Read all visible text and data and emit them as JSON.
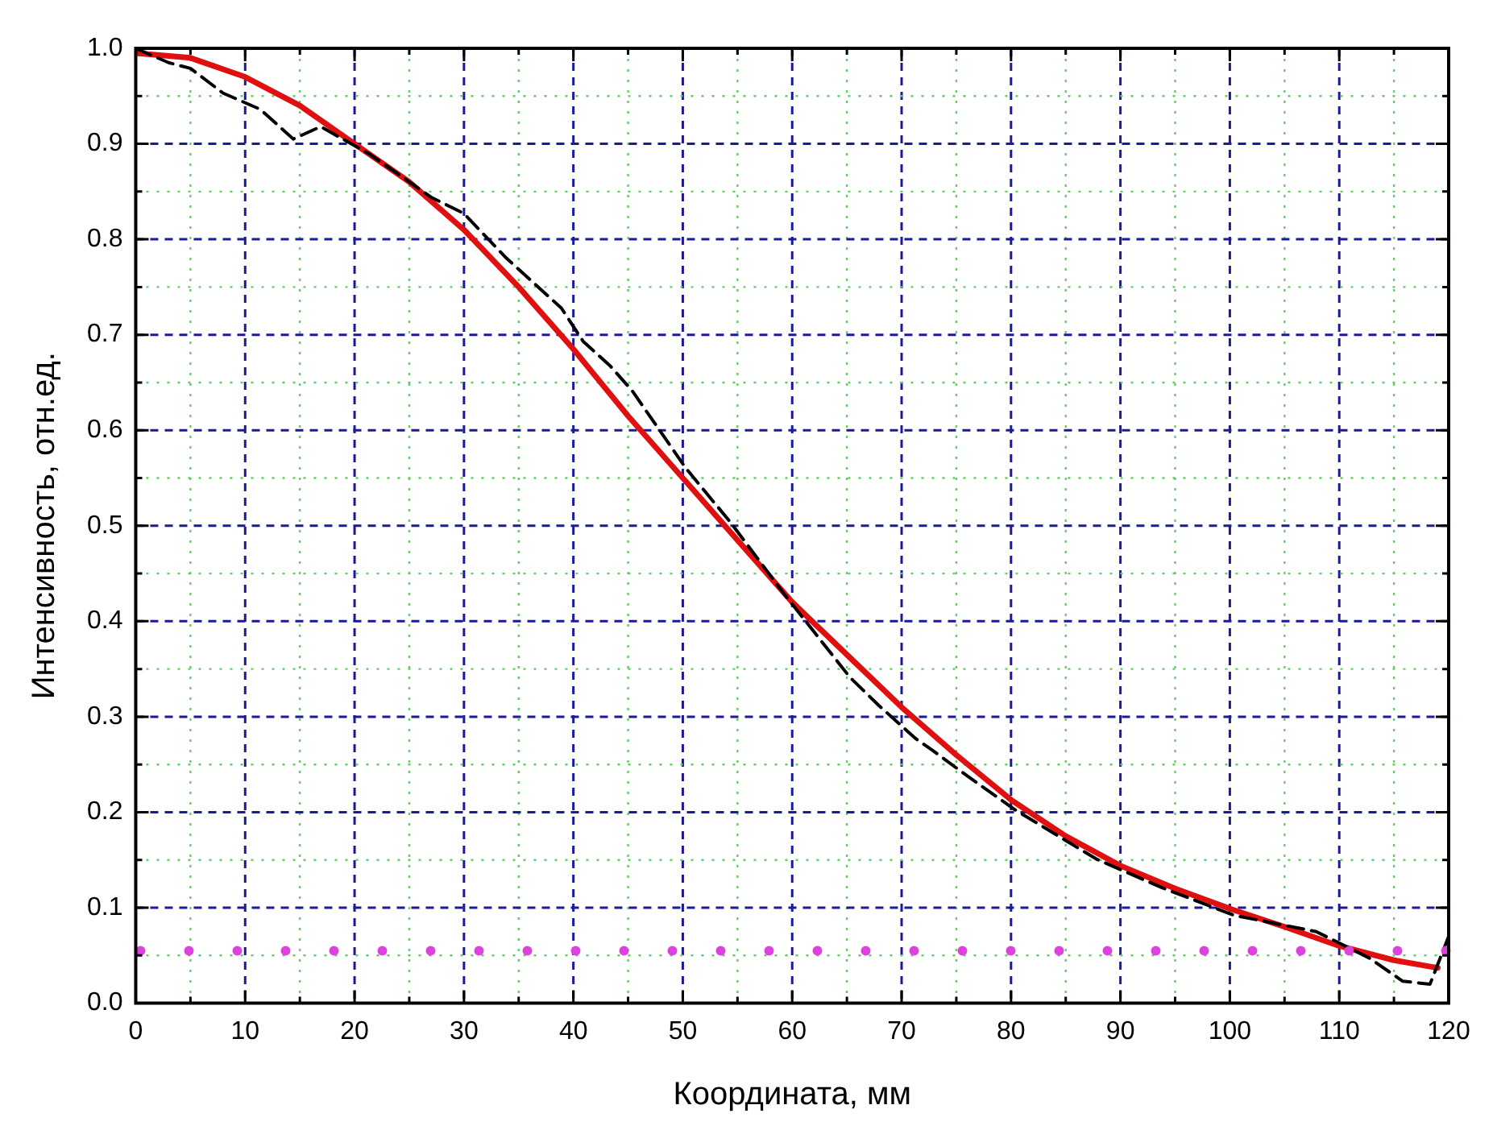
{
  "chart_data": {
    "type": "line",
    "xlabel": "Координата, мм",
    "ylabel": "Интенсивность, отн.ед.",
    "series": [
      {
        "color": "#000000",
        "line_style": "dashed",
        "x": [
          0,
          3,
          5,
          8,
          11.4,
          14.4,
          16.9,
          21.4,
          27,
          30,
          33.9,
          38.9,
          40.9,
          43.4,
          45.4,
          50.3,
          54.4,
          59.3,
          65.3,
          67.9,
          71.3,
          72.8,
          75.4,
          80.3,
          87.8,
          93.8,
          100.4,
          107.9,
          112.8,
          115.8,
          118.3,
          120
        ],
        "values": [
          1.0,
          0.985,
          0.979,
          0.953,
          0.936,
          0.905,
          0.918,
          0.889,
          0.844,
          0.827,
          0.78,
          0.728,
          0.693,
          0.667,
          0.641,
          0.56,
          0.503,
          0.428,
          0.341,
          0.312,
          0.277,
          0.265,
          0.243,
          0.203,
          0.151,
          0.121,
          0.092,
          0.075,
          0.047,
          0.023,
          0.02,
          0.07
        ]
      },
      {
        "color": "#e01010",
        "line_style": "solid",
        "x": [
          0,
          5,
          10,
          15,
          20,
          25,
          30,
          35,
          40,
          45,
          50,
          55,
          60,
          65,
          70,
          75,
          80,
          85,
          90,
          95,
          100,
          105,
          110,
          115,
          119
        ],
        "values": [
          0.995,
          0.99,
          0.97,
          0.94,
          0.9,
          0.86,
          0.81,
          0.75,
          0.685,
          0.615,
          0.55,
          0.485,
          0.42,
          0.365,
          0.31,
          0.26,
          0.213,
          0.175,
          0.144,
          0.12,
          0.099,
          0.08,
          0.06,
          0.045,
          0.037
        ]
      }
    ],
    "xlim": [
      0,
      120
    ],
    "xticks": [
      0,
      {
        "value": 5,
        "label": null
      },
      10,
      {
        "value": 15,
        "label": null
      },
      20,
      {
        "value": 25,
        "label": null
      },
      30,
      {
        "value": 35,
        "label": null
      },
      40,
      {
        "value": 45,
        "label": null
      },
      50,
      {
        "value": 55,
        "label": null
      },
      60,
      {
        "value": 65,
        "label": null
      },
      70,
      {
        "value": 75,
        "label": null
      },
      80,
      {
        "value": 85,
        "label": null
      },
      90,
      {
        "value": 95,
        "label": null
      },
      100,
      {
        "value": 105,
        "label": null
      },
      110,
      {
        "value": 115,
        "label": null
      },
      120
    ],
    "ylim": [
      0,
      1
    ],
    "yticks": [
      {
        "value": 0,
        "label": "0.0"
      },
      {
        "value": 0.05,
        "label": null
      },
      0.1,
      {
        "value": 0.15,
        "label": null
      },
      0.2,
      {
        "value": 0.25,
        "label": null
      },
      0.3,
      {
        "value": 0.35,
        "label": null
      },
      0.4,
      {
        "value": 0.45,
        "label": null
      },
      0.5,
      {
        "value": 0.55,
        "label": null
      },
      0.6,
      {
        "value": 0.65,
        "label": null
      },
      0.7,
      {
        "value": 0.75,
        "label": null
      },
      0.8,
      {
        "value": 0.85,
        "label": null
      },
      0.9,
      {
        "value": 0.95,
        "label": null
      },
      {
        "value": 1,
        "label": "1.0"
      }
    ],
    "ref_lines": [
      {
        "axis": "y",
        "value": 0.055,
        "color": "#e040e0",
        "line_style": "dotted"
      }
    ],
    "grid": true,
    "legend": false,
    "marker": "none"
  }
}
